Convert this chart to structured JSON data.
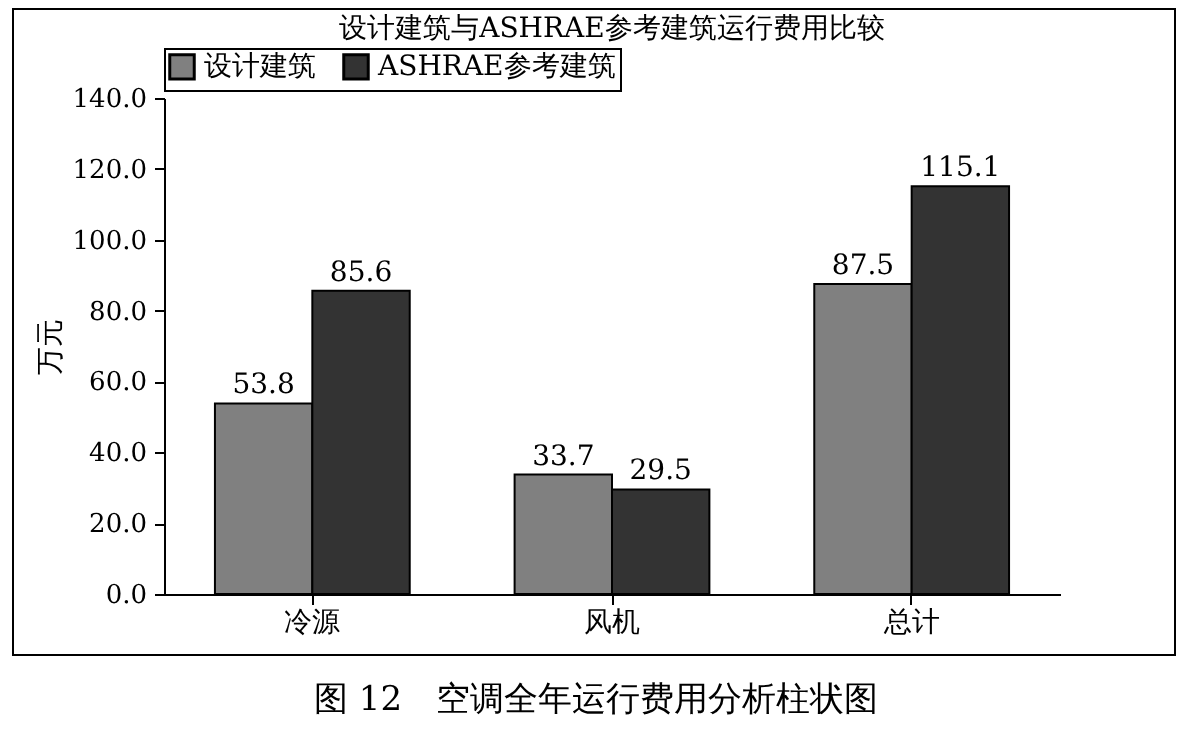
{
  "chart_data": {
    "type": "bar",
    "title": "设计建筑与ASHRAE参考建筑运行费用比较",
    "ylabel": "万元",
    "categories": [
      "冷源",
      "风机",
      "总计"
    ],
    "series": [
      {
        "name": "设计建筑",
        "color": "#808080",
        "values": [
          53.8,
          33.7,
          87.5
        ]
      },
      {
        "name": "ASHRAE参考建筑",
        "color": "#333333",
        "values": [
          85.6,
          29.5,
          115.1
        ]
      }
    ],
    "ylim": [
      0,
      140
    ],
    "yticks": [
      {
        "value": 0,
        "label": "0.0"
      },
      {
        "value": 20,
        "label": "20.0"
      },
      {
        "value": 40,
        "label": "40.0"
      },
      {
        "value": 60,
        "label": "60.0"
      },
      {
        "value": 80,
        "label": "80.0"
      },
      {
        "value": 100,
        "label": "100.0"
      },
      {
        "value": 120,
        "label": "120.0"
      },
      {
        "value": 140,
        "label": "140.0"
      }
    ],
    "data_labels": true,
    "legend": "top",
    "grid": false,
    "annotations": [
      "图 12　空调全年运行费用分析柱状图"
    ]
  }
}
